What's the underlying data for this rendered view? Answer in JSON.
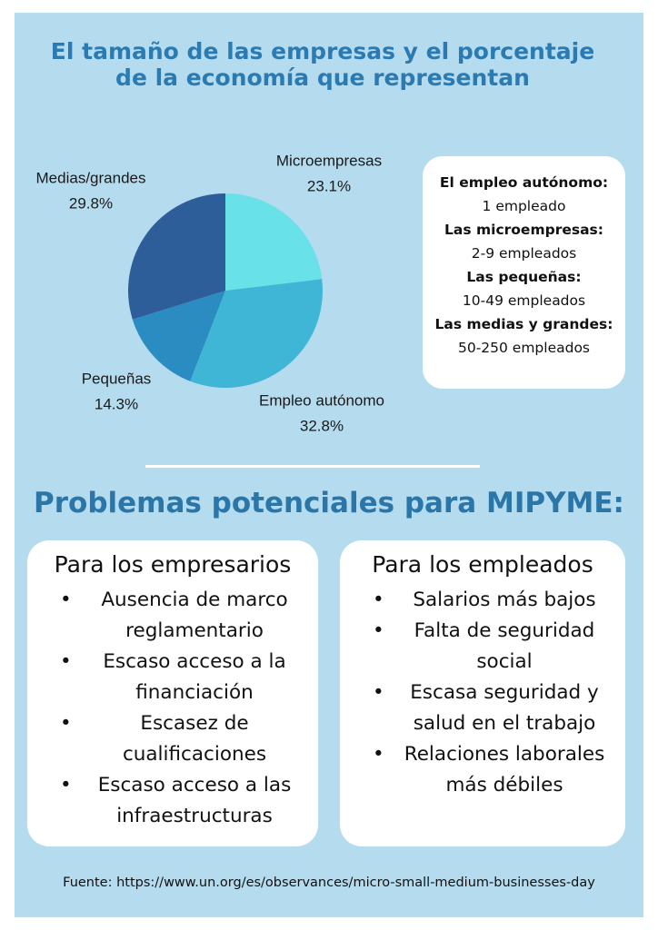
{
  "chart_data": {
    "type": "pie",
    "title": "El tamaño de las empresas y el porcentaje de la economía que representan",
    "categories": [
      "Microempresas",
      "Empleo autónomo",
      "Pequeñas",
      "Medias/grandes"
    ],
    "values": [
      23.1,
      32.8,
      14.3,
      29.8
    ],
    "value_labels": [
      "23.1%",
      "32.8%",
      "14.3%",
      "29.8%"
    ],
    "colors": [
      "#68e2e8",
      "#40b6d7",
      "#2a8cc0",
      "#2e5e99"
    ]
  },
  "definitions": [
    {
      "term": "El empleo autónomo:",
      "desc": "1 empleado"
    },
    {
      "term": "Las microempresas:",
      "desc": "2-9 empleados"
    },
    {
      "term": "Las pequeñas:",
      "desc": "10-49 empleados"
    },
    {
      "term": "Las medias y grandes:",
      "desc": "50-250 empleados"
    }
  ],
  "section_title": "Problemas potenciales para MIPYME:",
  "panels": [
    {
      "title": "Para los empresarios",
      "items": [
        "Ausencia de marco reglamentario",
        "Escaso acceso a la financiación",
        "Escasez de cualificaciones",
        "Escaso acceso a las infraestructuras"
      ]
    },
    {
      "title": "Para los empleados",
      "items": [
        "Salarios más bajos",
        "Falta de seguridad social",
        "Escasa seguridad y salud en el trabajo",
        "Relaciones laborales más débiles"
      ]
    }
  ],
  "source": "Fuente: https://www.un.org/es/observances/micro-small-medium-businesses-day"
}
